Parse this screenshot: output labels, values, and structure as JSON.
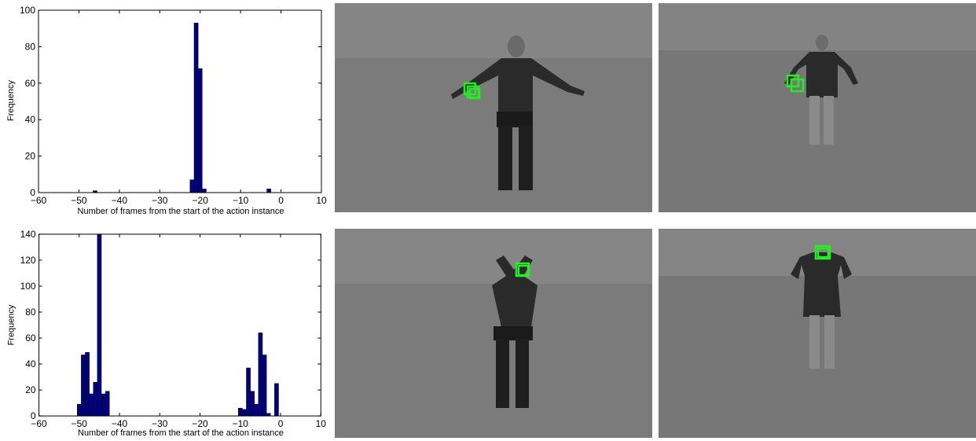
{
  "chart_data": [
    {
      "type": "bar",
      "xlabel": "Number of frames from the start of the action instance",
      "ylabel": "Frequency",
      "xlim": [
        -60,
        10
      ],
      "ylim": [
        0,
        100
      ],
      "xticks": [
        "−60",
        "−50",
        "−40",
        "−30",
        "−20",
        "−10",
        "0",
        "10"
      ],
      "xtick_values": [
        -60,
        -50,
        -40,
        -30,
        -20,
        -10,
        0,
        10
      ],
      "yticks": [
        "0",
        "20",
        "40",
        "60",
        "80",
        "100"
      ],
      "ytick_values": [
        0,
        20,
        40,
        60,
        80,
        100
      ],
      "bin_width": 1,
      "bar_color": "#000080",
      "bins": [
        {
          "x": -46,
          "value": 1
        },
        {
          "x": -22,
          "value": 7
        },
        {
          "x": -21,
          "value": 93
        },
        {
          "x": -20,
          "value": 68
        },
        {
          "x": -19,
          "value": 2
        },
        {
          "x": -3,
          "value": 2
        }
      ]
    },
    {
      "type": "bar",
      "xlabel": "Number of frames from the start of the action instance",
      "ylabel": "Frequency",
      "xlim": [
        -60,
        10
      ],
      "ylim": [
        0,
        140
      ],
      "xticks": [
        "−60",
        "−50",
        "−40",
        "−30",
        "−20",
        "−10",
        "0",
        "10"
      ],
      "xtick_values": [
        -60,
        -50,
        -40,
        -30,
        -20,
        -10,
        0,
        10
      ],
      "yticks": [
        "0",
        "20",
        "40",
        "60",
        "80",
        "100",
        "120",
        "140"
      ],
      "ytick_values": [
        0,
        20,
        40,
        60,
        80,
        100,
        120,
        140
      ],
      "bin_width": 1,
      "bar_color": "#000080",
      "bins": [
        {
          "x": -50,
          "value": 9
        },
        {
          "x": -49,
          "value": 47
        },
        {
          "x": -48,
          "value": 49
        },
        {
          "x": -47,
          "value": 17
        },
        {
          "x": -46,
          "value": 26
        },
        {
          "x": -45,
          "value": 140
        },
        {
          "x": -44,
          "value": 17
        },
        {
          "x": -43,
          "value": 19
        },
        {
          "x": -10,
          "value": 6
        },
        {
          "x": -9,
          "value": 5
        },
        {
          "x": -8,
          "value": 37
        },
        {
          "x": -7,
          "value": 19
        },
        {
          "x": -6,
          "value": 9
        },
        {
          "x": -5,
          "value": 64
        },
        {
          "x": -4,
          "value": 47
        },
        {
          "x": -3,
          "value": 2
        },
        {
          "x": -1,
          "value": 25
        }
      ]
    }
  ],
  "photos": {
    "marker_color": "#22ee22",
    "items": [
      {
        "subject": "person-arms-outstretched"
      },
      {
        "subject": "person-arms-lowered"
      },
      {
        "subject": "person-arms-crossed-overhead"
      },
      {
        "subject": "person-hands-over-head"
      }
    ]
  }
}
